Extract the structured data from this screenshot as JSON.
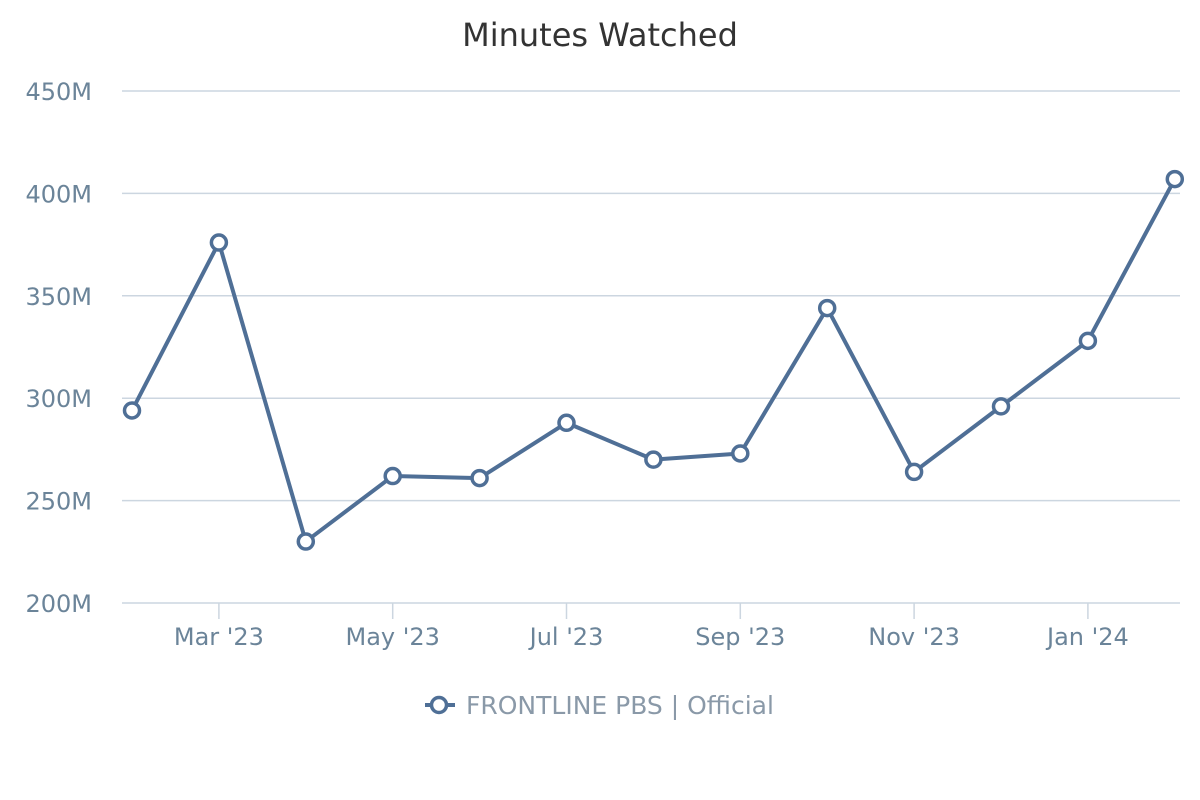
{
  "chart_data": {
    "type": "line",
    "title": "Minutes Watched",
    "xlabel": "",
    "ylabel": "",
    "x": [
      "2023-02",
      "2023-03",
      "2023-04",
      "2023-05",
      "2023-06",
      "2023-07",
      "2023-08",
      "2023-09",
      "2023-10",
      "2023-11",
      "2023-12",
      "2024-01",
      "2024-02"
    ],
    "x_tick_labels": [
      "Mar '23",
      "May '23",
      "Jul '23",
      "Sep '23",
      "Nov '23",
      "Jan '24"
    ],
    "y_tick_labels": [
      "200M",
      "250M",
      "300M",
      "350M",
      "400M",
      "450M"
    ],
    "ylim": [
      200,
      450
    ],
    "y_unit": "M",
    "grid": true,
    "legend_position": "bottom-center",
    "series": [
      {
        "name": "FRONTLINE PBS | Official",
        "color": "#4f6f96",
        "values": [
          294,
          376,
          230,
          262,
          261,
          288,
          270,
          273,
          344,
          264,
          296,
          328,
          407
        ]
      }
    ]
  },
  "colors": {
    "line": "#4f6f96",
    "grid": "#ccd6e0",
    "axis_text": "#6b8499",
    "title": "#333333",
    "legend_text": "#8a99a8"
  }
}
